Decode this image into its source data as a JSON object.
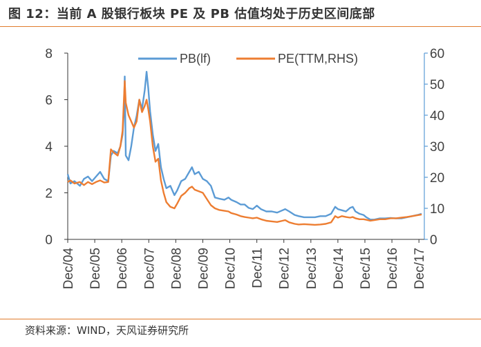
{
  "header": {
    "title": "图 12：当前 A 股银行板块 PE 及 PB 估值均处于历史区间底部"
  },
  "footer": {
    "source": "资料来源：WIND，天风证券研究所"
  },
  "colors": {
    "accent_rule": "#e07a2b",
    "pb": "#5b9bd5",
    "pe": "#ed7d31",
    "axis": "#333333"
  },
  "chart_data": {
    "type": "line",
    "title": "",
    "xlabel": "",
    "ylabel": "",
    "categories": [
      "Dec/04",
      "Dec/05",
      "Dec/06",
      "Dec/07",
      "Dec/08",
      "Dec/09",
      "Dec/10",
      "Dec/11",
      "Dec/12",
      "Dec/13",
      "Dec/14",
      "Dec/15",
      "Dec/16",
      "Dec/17"
    ],
    "x_range": [
      2004.95,
      2018.15
    ],
    "ylim_left": [
      0,
      8
    ],
    "yticks_left": [
      0,
      2,
      4,
      6,
      8
    ],
    "ylim_right": [
      0,
      60
    ],
    "yticks_right": [
      0,
      10,
      20,
      30,
      40,
      50,
      60
    ],
    "legend": "top-center",
    "grid": false,
    "series": [
      {
        "name": "PB(lf)",
        "axis": "left",
        "color": "#5b9bd5",
        "points": [
          [
            2004.95,
            2.8
          ],
          [
            2005.05,
            2.4
          ],
          [
            2005.2,
            2.5
          ],
          [
            2005.4,
            2.3
          ],
          [
            2005.55,
            2.6
          ],
          [
            2005.7,
            2.7
          ],
          [
            2005.85,
            2.5
          ],
          [
            2006.0,
            2.7
          ],
          [
            2006.15,
            2.9
          ],
          [
            2006.3,
            2.6
          ],
          [
            2006.45,
            2.5
          ],
          [
            2006.55,
            3.6
          ],
          [
            2006.65,
            3.8
          ],
          [
            2006.8,
            3.7
          ],
          [
            2006.9,
            4.0
          ],
          [
            2006.98,
            4.5
          ],
          [
            2007.03,
            5.5
          ],
          [
            2007.06,
            7.0
          ],
          [
            2007.1,
            3.6
          ],
          [
            2007.2,
            3.4
          ],
          [
            2007.3,
            4.0
          ],
          [
            2007.4,
            4.8
          ],
          [
            2007.5,
            5.3
          ],
          [
            2007.6,
            6.0
          ],
          [
            2007.7,
            5.6
          ],
          [
            2007.8,
            6.4
          ],
          [
            2007.87,
            7.2
          ],
          [
            2007.93,
            6.5
          ],
          [
            2008.0,
            5.5
          ],
          [
            2008.1,
            4.5
          ],
          [
            2008.2,
            3.8
          ],
          [
            2008.3,
            4.1
          ],
          [
            2008.4,
            3.1
          ],
          [
            2008.5,
            2.6
          ],
          [
            2008.6,
            2.2
          ],
          [
            2008.75,
            2.3
          ],
          [
            2008.9,
            1.9
          ],
          [
            2009.0,
            2.1
          ],
          [
            2009.15,
            2.5
          ],
          [
            2009.3,
            2.6
          ],
          [
            2009.45,
            2.9
          ],
          [
            2009.55,
            3.1
          ],
          [
            2009.65,
            2.8
          ],
          [
            2009.8,
            2.9
          ],
          [
            2009.95,
            2.6
          ],
          [
            2010.1,
            2.5
          ],
          [
            2010.25,
            2.3
          ],
          [
            2010.4,
            1.8
          ],
          [
            2010.55,
            1.75
          ],
          [
            2010.75,
            1.7
          ],
          [
            2010.9,
            1.8
          ],
          [
            2011.0,
            1.7
          ],
          [
            2011.2,
            1.6
          ],
          [
            2011.35,
            1.5
          ],
          [
            2011.5,
            1.5
          ],
          [
            2011.65,
            1.35
          ],
          [
            2011.8,
            1.3
          ],
          [
            2011.95,
            1.45
          ],
          [
            2012.1,
            1.3
          ],
          [
            2012.3,
            1.2
          ],
          [
            2012.5,
            1.2
          ],
          [
            2012.7,
            1.15
          ],
          [
            2012.9,
            1.25
          ],
          [
            2013.0,
            1.3
          ],
          [
            2013.15,
            1.2
          ],
          [
            2013.35,
            1.05
          ],
          [
            2013.5,
            1.0
          ],
          [
            2013.7,
            0.95
          ],
          [
            2013.9,
            0.95
          ],
          [
            2014.1,
            0.95
          ],
          [
            2014.3,
            1.0
          ],
          [
            2014.5,
            1.0
          ],
          [
            2014.7,
            1.1
          ],
          [
            2014.85,
            1.4
          ],
          [
            2014.95,
            1.3
          ],
          [
            2015.1,
            1.25
          ],
          [
            2015.25,
            1.2
          ],
          [
            2015.4,
            1.35
          ],
          [
            2015.5,
            1.4
          ],
          [
            2015.6,
            1.2
          ],
          [
            2015.75,
            1.1
          ],
          [
            2015.9,
            1.05
          ],
          [
            2016.0,
            0.95
          ],
          [
            2016.15,
            0.85
          ],
          [
            2016.3,
            0.85
          ],
          [
            2016.5,
            0.9
          ],
          [
            2016.7,
            0.9
          ],
          [
            2016.9,
            0.92
          ],
          [
            2017.1,
            0.9
          ],
          [
            2017.3,
            0.9
          ],
          [
            2017.5,
            0.95
          ],
          [
            2017.7,
            1.0
          ],
          [
            2017.9,
            1.05
          ],
          [
            2018.05,
            1.1
          ]
        ]
      },
      {
        "name": "PE(TTM,RHS)",
        "axis": "right",
        "color": "#ed7d31",
        "points": [
          [
            2004.95,
            18.5
          ],
          [
            2005.05,
            19.0
          ],
          [
            2005.2,
            18.0
          ],
          [
            2005.4,
            18.5
          ],
          [
            2005.55,
            17.5
          ],
          [
            2005.7,
            18.5
          ],
          [
            2005.85,
            17.8
          ],
          [
            2006.0,
            18.5
          ],
          [
            2006.15,
            19.0
          ],
          [
            2006.3,
            18.3
          ],
          [
            2006.45,
            18.5
          ],
          [
            2006.55,
            29.0
          ],
          [
            2006.65,
            28.0
          ],
          [
            2006.8,
            27.0
          ],
          [
            2006.9,
            30.0
          ],
          [
            2006.98,
            35.0
          ],
          [
            2007.03,
            45.0
          ],
          [
            2007.06,
            51.0
          ],
          [
            2007.1,
            44.0
          ],
          [
            2007.2,
            40.0
          ],
          [
            2007.3,
            38.0
          ],
          [
            2007.4,
            36.0
          ],
          [
            2007.5,
            38.0
          ],
          [
            2007.6,
            45.0
          ],
          [
            2007.7,
            41.0
          ],
          [
            2007.8,
            43.0
          ],
          [
            2007.87,
            45.0
          ],
          [
            2007.93,
            42.0
          ],
          [
            2008.0,
            38.0
          ],
          [
            2008.1,
            30.0
          ],
          [
            2008.2,
            25.0
          ],
          [
            2008.3,
            26.0
          ],
          [
            2008.4,
            19.0
          ],
          [
            2008.5,
            15.0
          ],
          [
            2008.6,
            12.0
          ],
          [
            2008.75,
            10.5
          ],
          [
            2008.9,
            10.0
          ],
          [
            2009.0,
            11.5
          ],
          [
            2009.15,
            14.0
          ],
          [
            2009.3,
            15.0
          ],
          [
            2009.45,
            16.5
          ],
          [
            2009.55,
            17.0
          ],
          [
            2009.65,
            16.0
          ],
          [
            2009.8,
            15.5
          ],
          [
            2009.95,
            15.0
          ],
          [
            2010.1,
            13.0
          ],
          [
            2010.25,
            11.0
          ],
          [
            2010.4,
            10.0
          ],
          [
            2010.55,
            9.5
          ],
          [
            2010.75,
            9.2
          ],
          [
            2010.9,
            9.0
          ],
          [
            2011.0,
            8.5
          ],
          [
            2011.2,
            8.0
          ],
          [
            2011.35,
            7.5
          ],
          [
            2011.5,
            7.2
          ],
          [
            2011.65,
            7.0
          ],
          [
            2011.8,
            6.8
          ],
          [
            2011.95,
            7.0
          ],
          [
            2012.1,
            6.5
          ],
          [
            2012.3,
            6.0
          ],
          [
            2012.5,
            5.8
          ],
          [
            2012.7,
            5.6
          ],
          [
            2012.9,
            6.0
          ],
          [
            2013.0,
            6.2
          ],
          [
            2013.15,
            5.5
          ],
          [
            2013.35,
            5.0
          ],
          [
            2013.5,
            4.8
          ],
          [
            2013.7,
            4.9
          ],
          [
            2013.9,
            4.8
          ],
          [
            2014.1,
            4.7
          ],
          [
            2014.3,
            4.8
          ],
          [
            2014.5,
            5.0
          ],
          [
            2014.7,
            5.5
          ],
          [
            2014.85,
            7.5
          ],
          [
            2014.95,
            7.0
          ],
          [
            2015.1,
            7.5
          ],
          [
            2015.25,
            7.2
          ],
          [
            2015.4,
            7.0
          ],
          [
            2015.5,
            7.2
          ],
          [
            2015.6,
            6.8
          ],
          [
            2015.75,
            6.5
          ],
          [
            2015.9,
            6.5
          ],
          [
            2016.0,
            6.3
          ],
          [
            2016.15,
            6.0
          ],
          [
            2016.3,
            6.2
          ],
          [
            2016.5,
            6.5
          ],
          [
            2016.7,
            6.5
          ],
          [
            2016.9,
            6.8
          ],
          [
            2017.1,
            6.8
          ],
          [
            2017.3,
            7.0
          ],
          [
            2017.5,
            7.2
          ],
          [
            2017.7,
            7.5
          ],
          [
            2017.9,
            7.8
          ],
          [
            2018.05,
            8.0
          ]
        ]
      }
    ]
  }
}
